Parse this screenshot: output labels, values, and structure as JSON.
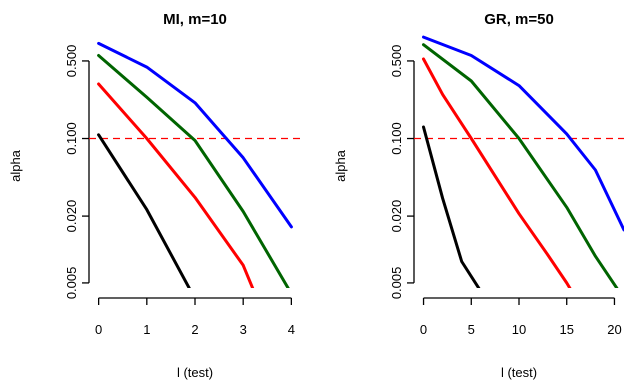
{
  "chart_data": [
    {
      "type": "line",
      "title": "MI, m=10",
      "xlabel": "l (test)",
      "ylabel": "alpha",
      "y_scale": "log",
      "xlim": [
        -0.2,
        4.2
      ],
      "ylim": [
        0.0045,
        0.95
      ],
      "x_ticks": [
        0,
        1,
        2,
        3,
        4
      ],
      "x_tick_labels": [
        "0",
        "1",
        "2",
        "3",
        "4"
      ],
      "y_ticks": [
        0.005,
        0.02,
        0.1,
        0.5
      ],
      "y_tick_labels": [
        "0.005",
        "0.020",
        "0.100",
        "0.500"
      ],
      "reference_line": {
        "y": 0.1,
        "color": "#ff0000",
        "style": "dashed"
      },
      "series": [
        {
          "color": "#0000ff",
          "points": [
            [
              0,
              0.72
            ],
            [
              1,
              0.44
            ],
            [
              2,
              0.21
            ],
            [
              3,
              0.067
            ],
            [
              4,
              0.016
            ]
          ]
        },
        {
          "color": "#006400",
          "points": [
            [
              0,
              0.56
            ],
            [
              1,
              0.235
            ],
            [
              2,
              0.096
            ],
            [
              3,
              0.022
            ],
            [
              4,
              0.004
            ]
          ]
        },
        {
          "color": "#ff0000",
          "points": [
            [
              0,
              0.31
            ],
            [
              1,
              0.1
            ],
            [
              2,
              0.0295
            ],
            [
              3,
              0.0072
            ],
            [
              3.3,
              0.0035
            ]
          ]
        },
        {
          "color": "#000000",
          "points": [
            [
              0,
              0.108
            ],
            [
              1,
              0.0229
            ],
            [
              2,
              0.0036
            ]
          ]
        }
      ]
    },
    {
      "type": "line",
      "title": "GR, m=50",
      "xlabel": "l (test)",
      "ylabel": "alpha",
      "y_scale": "log",
      "xlim": [
        -1,
        21
      ],
      "ylim": [
        0.0045,
        0.95
      ],
      "x_ticks": [
        0,
        5,
        10,
        15,
        20
      ],
      "x_tick_labels": [
        "0",
        "5",
        "10",
        "15",
        "20"
      ],
      "y_ticks": [
        0.005,
        0.02,
        0.1,
        0.5
      ],
      "y_tick_labels": [
        "0.005",
        "0.020",
        "0.100",
        "0.500"
      ],
      "reference_line": {
        "y": 0.1,
        "color": "#ff0000",
        "style": "dashed"
      },
      "series": [
        {
          "color": "#0000ff",
          "points": [
            [
              0,
              0.82
            ],
            [
              5,
              0.56
            ],
            [
              10,
              0.3
            ],
            [
              15,
              0.11
            ],
            [
              18,
              0.052
            ],
            [
              21,
              0.015
            ]
          ]
        },
        {
          "color": "#006400",
          "points": [
            [
              0,
              0.7
            ],
            [
              5,
              0.33
            ],
            [
              10,
              0.1
            ],
            [
              15,
              0.024
            ],
            [
              18,
              0.0087
            ],
            [
              21,
              0.0036
            ]
          ]
        },
        {
          "color": "#ff0000",
          "points": [
            [
              0,
              0.52
            ],
            [
              2,
              0.25
            ],
            [
              5,
              0.1
            ],
            [
              10,
              0.021
            ],
            [
              13,
              0.009
            ],
            [
              15,
              0.005
            ],
            [
              16,
              0.0036
            ]
          ]
        },
        {
          "color": "#000000",
          "points": [
            [
              0,
              0.127
            ],
            [
              2,
              0.029
            ],
            [
              4,
              0.0078
            ],
            [
              6,
              0.0042
            ],
            [
              6.5,
              0.0036
            ]
          ]
        }
      ]
    }
  ]
}
